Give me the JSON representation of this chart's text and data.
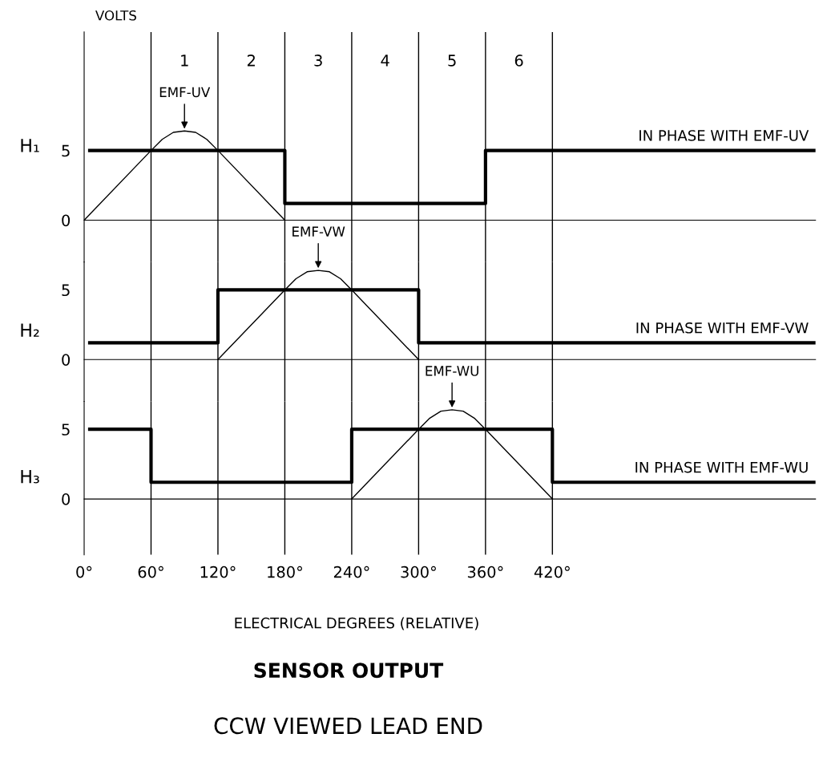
{
  "chart_data": [
    {
      "type": "line",
      "ylabel": "H₁",
      "xlim": [
        0,
        656
      ],
      "ylim": [
        -3,
        13.5
      ],
      "yticks": [
        0,
        5
      ],
      "tick_labels": "y",
      "grid": false,
      "legend": false,
      "series": [
        {
          "type": "step",
          "name": "IN PHASE WITH EMF-UV",
          "color": "#000000",
          "x": [
            5,
            180,
            360,
            656
          ],
          "values": [
            5,
            1.2,
            5,
            5
          ]
        },
        {
          "type": "line",
          "name": "EMF-UV",
          "color": "#000000",
          "x": [
            0,
            60,
            70,
            80,
            90,
            100,
            110,
            120,
            180
          ],
          "values": [
            0,
            5,
            5.8,
            6.3,
            6.4,
            6.3,
            5.8,
            5,
            0
          ]
        }
      ],
      "ref_lines": [
        {
          "axis": "x",
          "value": 60,
          "color": "#000000"
        },
        {
          "axis": "x",
          "value": 120,
          "color": "#000000"
        },
        {
          "axis": "x",
          "value": 180,
          "color": "#000000"
        },
        {
          "axis": "x",
          "value": 240,
          "color": "#000000"
        },
        {
          "axis": "x",
          "value": 300,
          "color": "#000000"
        },
        {
          "axis": "x",
          "value": 360,
          "color": "#000000"
        },
        {
          "axis": "x",
          "value": 420,
          "color": "#000000"
        }
      ],
      "annotations": [
        "VOLTS",
        "1",
        "2",
        "3",
        "4",
        "5",
        "6"
      ]
    },
    {
      "type": "line",
      "ylabel": "H₂",
      "xlim": [
        0,
        656
      ],
      "ylim": [
        -3,
        7
      ],
      "yticks": [
        0,
        5
      ],
      "tick_labels": "y",
      "grid": false,
      "legend": false,
      "series": [
        {
          "type": "step",
          "name": "IN PHASE WITH EMF-VW",
          "color": "#000000",
          "x": [
            5,
            120,
            300,
            656
          ],
          "values": [
            1.2,
            5,
            1.2,
            1.2
          ]
        },
        {
          "type": "line",
          "name": "EMF-VW",
          "color": "#000000",
          "x": [
            120,
            180,
            190,
            200,
            210,
            220,
            230,
            240,
            300
          ],
          "values": [
            0,
            5,
            5.8,
            6.3,
            6.4,
            6.3,
            5.8,
            5,
            0
          ]
        }
      ],
      "ref_lines": [
        {
          "axis": "x",
          "value": 60,
          "color": "#000000"
        },
        {
          "axis": "x",
          "value": 120,
          "color": "#000000"
        },
        {
          "axis": "x",
          "value": 180,
          "color": "#000000"
        },
        {
          "axis": "x",
          "value": 240,
          "color": "#000000"
        },
        {
          "axis": "x",
          "value": 300,
          "color": "#000000"
        },
        {
          "axis": "x",
          "value": 360,
          "color": "#000000"
        },
        {
          "axis": "x",
          "value": 420,
          "color": "#000000"
        }
      ]
    },
    {
      "type": "line",
      "title": "SENSOR OUTPUT",
      "subtitle": "CCW VIEWED LEAD END",
      "xlabel": "ELECTRICAL DEGREES (RELATIVE)",
      "ylabel": "H₃",
      "xlim": [
        0,
        656
      ],
      "ylim": [
        -4,
        7
      ],
      "xticks": [
        {
          "value": 0,
          "label": "0°"
        },
        {
          "value": 60,
          "label": "60°"
        },
        {
          "value": 120,
          "label": "120°"
        },
        {
          "value": 180,
          "label": "180°"
        },
        {
          "value": 240,
          "label": "240°"
        },
        {
          "value": 300,
          "label": "300°"
        },
        {
          "value": 360,
          "label": "360°"
        },
        {
          "value": 420,
          "label": "420°"
        }
      ],
      "yticks": [
        0,
        5
      ],
      "grid": false,
      "legend": false,
      "series": [
        {
          "type": "step",
          "name": "IN PHASE WITH EMF-WU",
          "color": "#000000",
          "x": [
            5,
            60,
            240,
            420,
            656
          ],
          "values": [
            5,
            1.2,
            5,
            1.2,
            1.2
          ]
        },
        {
          "type": "line",
          "name": "EMF-WU",
          "color": "#000000",
          "x": [
            240,
            300,
            310,
            320,
            330,
            340,
            350,
            360,
            420
          ],
          "values": [
            0,
            5,
            5.8,
            6.3,
            6.4,
            6.3,
            5.8,
            5,
            0
          ]
        }
      ],
      "ref_lines": [
        {
          "axis": "x",
          "value": 60,
          "color": "#000000"
        },
        {
          "axis": "x",
          "value": 120,
          "color": "#000000"
        },
        {
          "axis": "x",
          "value": 180,
          "color": "#000000"
        },
        {
          "axis": "x",
          "value": 240,
          "color": "#000000"
        },
        {
          "axis": "x",
          "value": 300,
          "color": "#000000"
        },
        {
          "axis": "x",
          "value": 360,
          "color": "#000000"
        },
        {
          "axis": "x",
          "value": 420,
          "color": "#000000"
        }
      ]
    }
  ]
}
